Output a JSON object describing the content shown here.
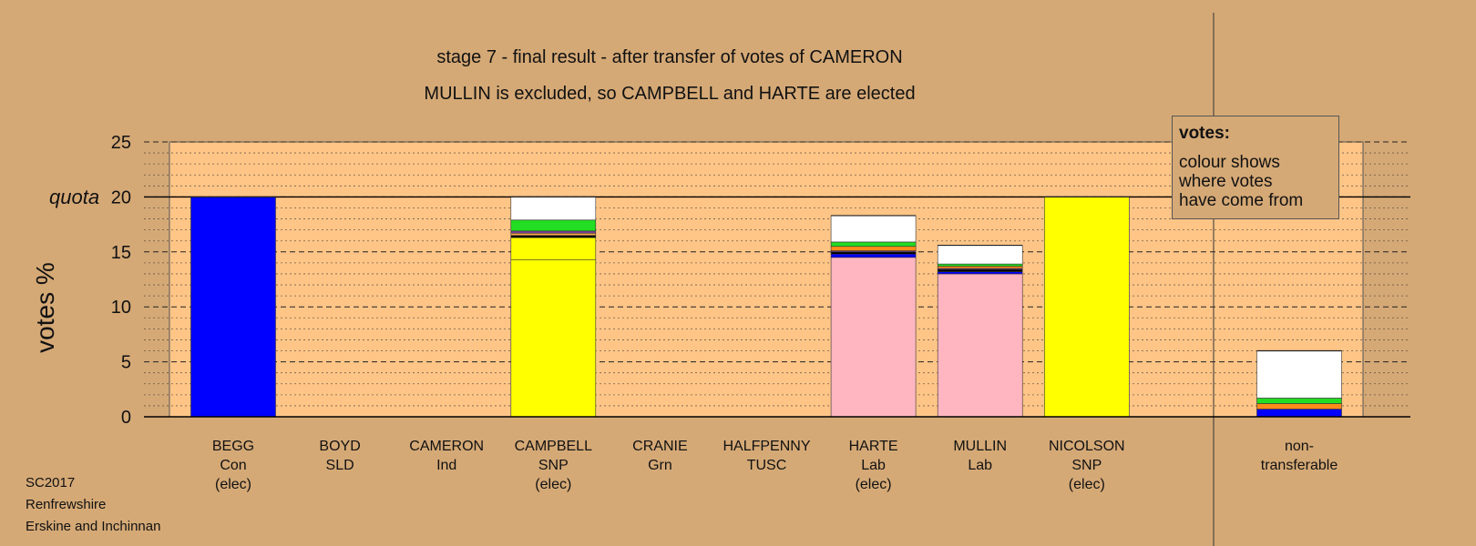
{
  "chart_data": {
    "type": "bar",
    "stacked": true,
    "title": "stage 7 - final result - after transfer of votes of CAMERON",
    "subtitle": "MULLIN is excluded, so CAMPBELL and HARTE are elected",
    "xlabel": "",
    "ylabel": "votes %",
    "ylim": [
      0,
      25
    ],
    "yticks": [
      0,
      5,
      10,
      15,
      20,
      25
    ],
    "quota": 20,
    "quota_label": "quota",
    "grid": true,
    "categories": [
      {
        "name": "BEGG",
        "party": "Con",
        "status": "(elec)"
      },
      {
        "name": "BOYD",
        "party": "SLD",
        "status": ""
      },
      {
        "name": "CAMERON",
        "party": "Ind",
        "status": ""
      },
      {
        "name": "CAMPBELL",
        "party": "SNP",
        "status": "(elec)"
      },
      {
        "name": "CRANIE",
        "party": "Grn",
        "status": ""
      },
      {
        "name": "HALFPENNY",
        "party": "TUSC",
        "status": ""
      },
      {
        "name": "HARTE",
        "party": "Lab",
        "status": "(elec)"
      },
      {
        "name": "MULLIN",
        "party": "Lab",
        "status": ""
      },
      {
        "name": "NICOLSON",
        "party": "SNP",
        "status": "(elec)"
      }
    ],
    "nontransferable_label": [
      "non-",
      "transferable"
    ],
    "stacks": [
      [
        {
          "color": "#0000ff",
          "value": 20.0
        }
      ],
      [],
      [],
      [
        {
          "color": "#ffff00",
          "value": 14.3
        },
        {
          "color": "#ffff00",
          "value": 2.0
        },
        {
          "color": "#000000",
          "value": 0.2
        },
        {
          "color": "#ffaa44",
          "value": 0.2
        },
        {
          "color": "#7a3f9e",
          "value": 0.2
        },
        {
          "color": "#22dd22",
          "value": 1.0
        },
        {
          "color": "#ffffff",
          "value": 2.1
        }
      ],
      [],
      [],
      [
        {
          "color": "#ffb6c1",
          "value": 14.5
        },
        {
          "color": "#0000ff",
          "value": 0.3
        },
        {
          "color": "#000000",
          "value": 0.2
        },
        {
          "color": "#7a3f9e",
          "value": 0.1
        },
        {
          "color": "#ff8c1a",
          "value": 0.4
        },
        {
          "color": "#22dd22",
          "value": 0.4
        },
        {
          "color": "#ffffff",
          "value": 2.4
        }
      ],
      [
        {
          "color": "#ffb6c1",
          "value": 13.0
        },
        {
          "color": "#0000ff",
          "value": 0.2
        },
        {
          "color": "#000000",
          "value": 0.2
        },
        {
          "color": "#7a3f9e",
          "value": 0.1
        },
        {
          "color": "#ff8c1a",
          "value": 0.2
        },
        {
          "color": "#22dd22",
          "value": 0.2
        },
        {
          "color": "#ffffff",
          "value": 1.7
        }
      ],
      [
        {
          "color": "#ffff00",
          "value": 20.0
        }
      ]
    ],
    "nontransferable": [
      {
        "color": "#0000ff",
        "value": 0.7
      },
      {
        "color": "#ff8c1a",
        "value": 0.5
      },
      {
        "color": "#22dd22",
        "value": 0.5
      },
      {
        "color": "#ffffff",
        "value": 4.3
      }
    ]
  },
  "legend": {
    "heading": "votes:",
    "lines": [
      "colour shows",
      "where votes",
      "have come from"
    ]
  },
  "footer": {
    "election": "SC2017",
    "council": "Renfrewshire",
    "ward": "Erskine and Inchinnan"
  },
  "colors": {
    "background": "#d5a976",
    "plot_area": "#ffc587",
    "axis": "#000000"
  }
}
